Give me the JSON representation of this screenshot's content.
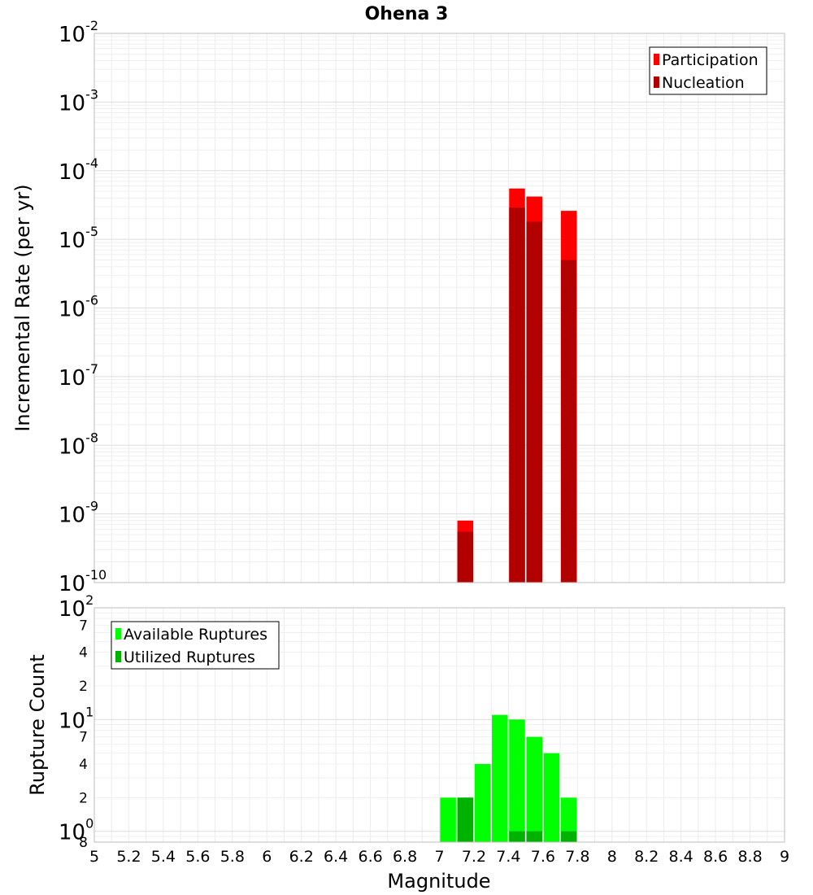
{
  "chart_data": {
    "title": "Ohena 3",
    "xlabel": "Magnitude",
    "x_ticks": [
      "5",
      "5.2",
      "5.4",
      "5.6",
      "5.8",
      "6",
      "6.2",
      "6.4",
      "6.6",
      "6.8",
      "7",
      "7.2",
      "7.4",
      "7.6",
      "7.8",
      "8",
      "8.2",
      "8.4",
      "8.6",
      "8.8",
      "9"
    ],
    "xlim": [
      5,
      9
    ],
    "panels": [
      {
        "type": "bar",
        "ylabel": "Incremental Rate (per yr)",
        "yscale": "log",
        "ylim": [
          1e-10,
          0.01
        ],
        "y_major_ticks": [
          {
            "base": "10",
            "exp": "-10",
            "value": 1e-10
          },
          {
            "base": "10",
            "exp": "-9",
            "value": 1e-09
          },
          {
            "base": "10",
            "exp": "-8",
            "value": 1e-08
          },
          {
            "base": "10",
            "exp": "-7",
            "value": 1e-07
          },
          {
            "base": "10",
            "exp": "-6",
            "value": 1e-06
          },
          {
            "base": "10",
            "exp": "-5",
            "value": 1e-05
          },
          {
            "base": "10",
            "exp": "-4",
            "value": 0.0001
          },
          {
            "base": "10",
            "exp": "-3",
            "value": 0.001
          },
          {
            "base": "10",
            "exp": "-2",
            "value": 0.01
          }
        ],
        "y_minor_ticks": [],
        "grid": true,
        "legend_position": "top-right",
        "series": [
          {
            "name": "Participation",
            "color": "#ff0000",
            "x": [
              7.15,
              7.45,
              7.55,
              7.75
            ],
            "values": [
              8e-10,
              5.5e-05,
              4.2e-05,
              2.6e-05
            ]
          },
          {
            "name": "Nucleation",
            "color": "#b20000",
            "x": [
              7.15,
              7.45,
              7.55,
              7.75
            ],
            "values": [
              5.5e-10,
              2.9e-05,
              1.8e-05,
              5e-06
            ]
          }
        ]
      },
      {
        "type": "bar",
        "ylabel": "Rupture Count",
        "yscale": "log",
        "ylim": [
          0.8,
          100
        ],
        "y_major_ticks": [
          {
            "base": "10",
            "exp": "0",
            "value": 1
          },
          {
            "base": "10",
            "exp": "1",
            "value": 10
          },
          {
            "base": "10",
            "exp": "2",
            "value": 100
          }
        ],
        "y_minor_ticks": [
          {
            "label": "8",
            "value": 0.8
          },
          {
            "label": "2",
            "value": 2
          },
          {
            "label": "4",
            "value": 4
          },
          {
            "label": "7",
            "value": 7
          },
          {
            "label": "2",
            "value": 20
          },
          {
            "label": "4",
            "value": 40
          },
          {
            "label": "7",
            "value": 70
          }
        ],
        "grid": true,
        "legend_position": "top-left",
        "series": [
          {
            "name": "Available Ruptures",
            "color": "#00ff00",
            "x": [
              7.05,
              7.15,
              7.25,
              7.35,
              7.45,
              7.55,
              7.65,
              7.75
            ],
            "values": [
              2,
              2,
              4,
              11,
              10,
              7,
              5,
              2
            ]
          },
          {
            "name": "Utilized Ruptures",
            "color": "#00b200",
            "x": [
              7.15,
              7.45,
              7.55,
              7.75
            ],
            "values": [
              2,
              1,
              1,
              1
            ]
          }
        ]
      }
    ]
  }
}
